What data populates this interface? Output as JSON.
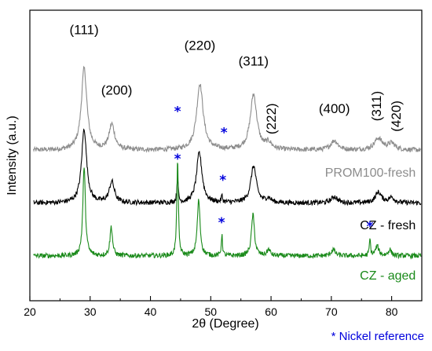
{
  "chart_data": {
    "type": "line",
    "title": "",
    "xlabel": "2θ (Degree)",
    "ylabel": "Intensity (a.u.)",
    "xlim": [
      20,
      85
    ],
    "xticks": [
      20,
      30,
      40,
      50,
      60,
      70,
      80
    ],
    "grid": false,
    "colors": {
      "gray": "#8c8c8c",
      "black": "#000000",
      "green": "#1a8a1a",
      "blue": "#0000dd"
    },
    "series": [
      {
        "name": "PROM100-fresh",
        "color": "#8c8c8c",
        "baseline": 2.0,
        "peaks": [
          [
            29.0,
            1.55,
            0.55
          ],
          [
            33.6,
            0.48,
            0.55
          ],
          [
            48.2,
            1.25,
            0.65
          ],
          [
            57.1,
            1.05,
            0.65
          ],
          [
            59.6,
            0.12,
            0.6
          ],
          [
            70.5,
            0.18,
            0.7
          ],
          [
            77.8,
            0.22,
            0.8
          ],
          [
            80.0,
            0.12,
            0.7
          ]
        ]
      },
      {
        "name": "CZ - fresh",
        "color": "#000000",
        "baseline": 1.0,
        "peaks": [
          [
            29.0,
            1.4,
            0.5
          ],
          [
            33.6,
            0.4,
            0.5
          ],
          [
            44.5,
            0.5,
            0.12
          ],
          [
            48.1,
            0.95,
            0.55
          ],
          [
            51.85,
            0.12,
            0.12
          ],
          [
            57.1,
            0.7,
            0.55
          ],
          [
            59.6,
            0.08,
            0.5
          ],
          [
            70.5,
            0.12,
            0.6
          ],
          [
            77.8,
            0.2,
            0.6
          ],
          [
            80.0,
            0.1,
            0.6
          ]
        ]
      },
      {
        "name": "CZ - aged",
        "color": "#1a8a1a",
        "baseline": 0.0,
        "peaks": [
          [
            29.0,
            1.7,
            0.25
          ],
          [
            33.5,
            0.55,
            0.25
          ],
          [
            44.5,
            1.85,
            0.15
          ],
          [
            48.0,
            1.05,
            0.28
          ],
          [
            51.85,
            0.4,
            0.12
          ],
          [
            57.0,
            0.78,
            0.3
          ],
          [
            59.6,
            0.12,
            0.3
          ],
          [
            70.3,
            0.12,
            0.4
          ],
          [
            76.4,
            0.32,
            0.12
          ],
          [
            77.6,
            0.18,
            0.35
          ],
          [
            79.7,
            0.12,
            0.3
          ]
        ]
      }
    ],
    "peak_labels": [
      {
        "text": "(111)",
        "x": 29.0,
        "y": 4.2,
        "rotate": false
      },
      {
        "text": "(200)",
        "x": 34.4,
        "y": 3.05,
        "rotate": false
      },
      {
        "text": "(220)",
        "x": 48.2,
        "y": 3.9,
        "rotate": false
      },
      {
        "text": "(311)",
        "x": 57.1,
        "y": 3.6,
        "rotate": false
      },
      {
        "text": "(222)",
        "x": 60.8,
        "y": 2.3,
        "rotate": true
      },
      {
        "text": "(400)",
        "x": 70.5,
        "y": 2.7,
        "rotate": false
      },
      {
        "text": "(311)",
        "x": 78.2,
        "y": 2.55,
        "rotate": true
      },
      {
        "text": "(420)",
        "x": 81.5,
        "y": 2.35,
        "rotate": true
      }
    ],
    "series_labels": [
      {
        "text": "PROM100-fresh",
        "color": "#8c8c8c",
        "x": 84.0,
        "y": 1.5
      },
      {
        "text": "CZ - fresh",
        "color": "#000000",
        "x": 84.0,
        "y": 0.5
      },
      {
        "text": "CZ - aged",
        "color": "#1a8a1a",
        "x": 84.0,
        "y": -0.45
      }
    ],
    "nickel_marks": [
      {
        "x": 44.5,
        "y": 2.65
      },
      {
        "x": 52.2,
        "y": 2.25
      },
      {
        "x": 44.5,
        "y": 1.75
      },
      {
        "x": 52.0,
        "y": 1.35
      },
      {
        "x": 51.8,
        "y": 0.55
      },
      {
        "x": 76.4,
        "y": 0.47
      }
    ],
    "nickel_symbol": "*",
    "legend_note": "* Nickel reference",
    "legend_note_color": "#0000dd",
    "ylim": [
      -0.85,
      4.65
    ]
  }
}
